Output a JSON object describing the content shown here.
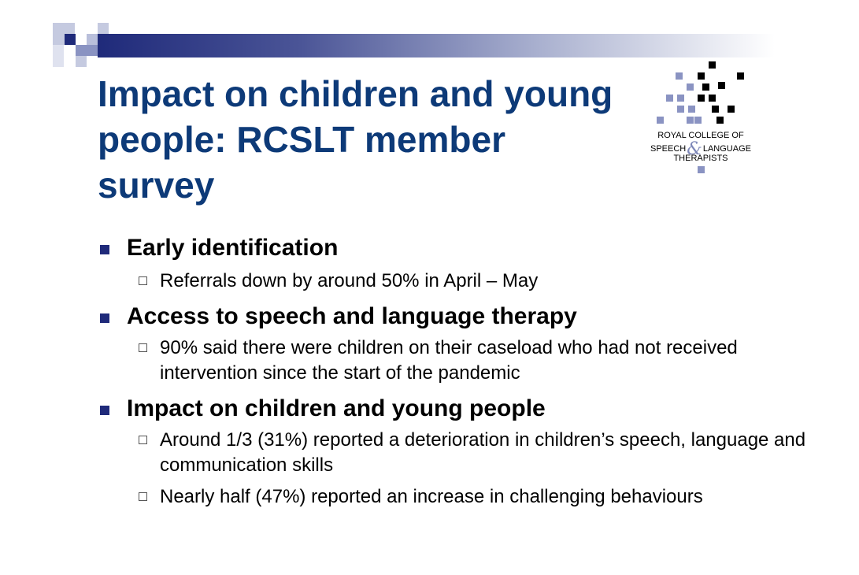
{
  "slide": {
    "title_lines": [
      "Impact on children and young",
      "people: RCSLT member",
      "survey"
    ]
  },
  "logo": {
    "line1": "ROYAL COLLEGE OF",
    "line2a": "SPEECH",
    "ampersand": "&",
    "line2b": "LANGUAGE",
    "line3": "THERAPISTS"
  },
  "bullets": [
    {
      "text": "Early identification",
      "sub": [
        "Referrals down by around 50% in April – May"
      ]
    },
    {
      "text": "Access to speech and language therapy",
      "sub": [
        "90% said there were children on their caseload who had not received intervention since the start of the pandemic"
      ]
    },
    {
      "text": "Impact on children and young people",
      "sub": [
        "Around 1/3 (31%) reported a deterioration in children’s speech, language and communication skills",
        "Nearly half (47%) reported an increase in challenging behaviours"
      ]
    }
  ],
  "colors": {
    "title": "#0d3a78",
    "accent": "#1f2a7a",
    "accent_light": "#a9b0cf"
  }
}
